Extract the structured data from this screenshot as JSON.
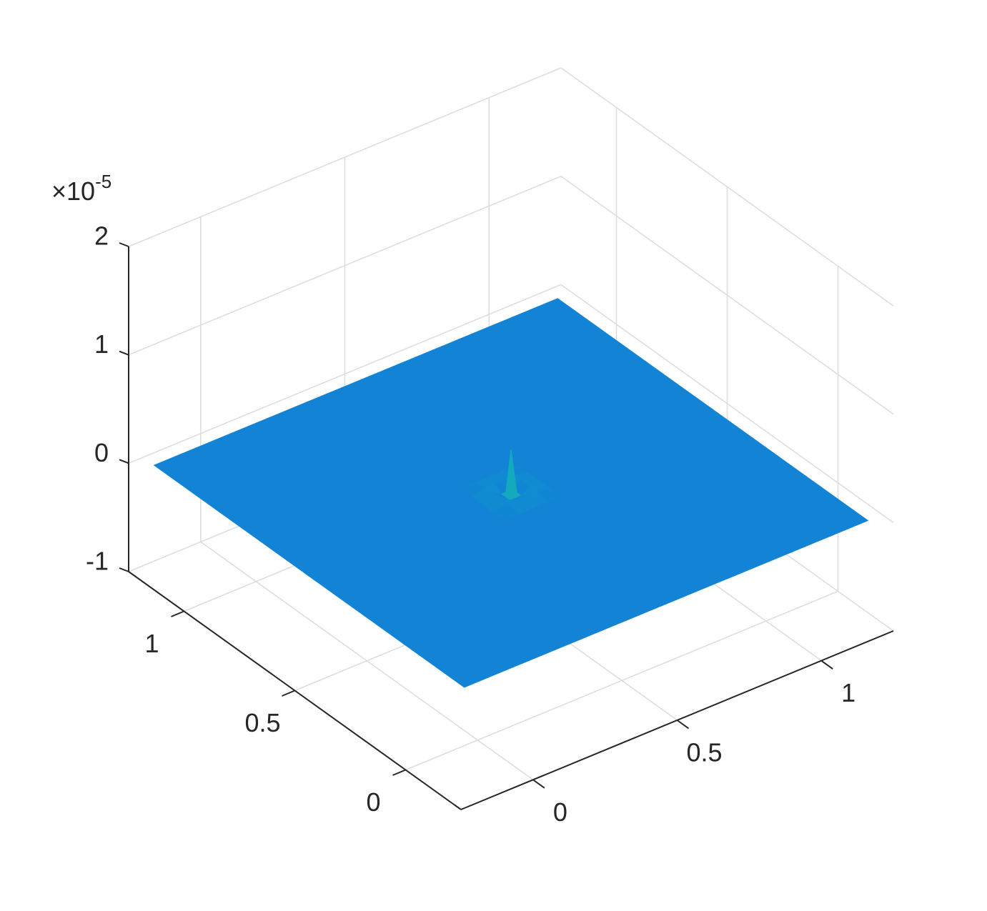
{
  "chart_data": {
    "type": "surface",
    "x": [
      -0.2,
      0,
      0.2,
      0.4,
      0.45,
      0.48,
      0.5,
      0.52,
      0.55,
      0.6,
      0.8,
      1,
      1.2
    ],
    "y": [
      -0.2,
      0,
      0.2,
      0.4,
      0.45,
      0.48,
      0.5,
      0.52,
      0.55,
      0.6,
      0.8,
      1,
      1.2
    ],
    "z": [
      [
        0,
        0,
        0,
        0,
        0,
        0,
        0,
        0,
        0,
        0,
        0,
        0,
        0
      ],
      [
        0,
        0,
        0,
        0,
        0,
        0,
        0,
        0,
        0,
        0,
        0,
        0,
        0
      ],
      [
        0,
        0,
        0,
        0,
        0,
        0,
        0,
        0,
        0,
        0,
        0,
        0,
        0
      ],
      [
        0,
        0,
        0,
        0,
        0,
        0,
        0,
        0,
        0,
        0,
        0,
        0,
        0
      ],
      [
        0,
        0,
        0,
        0,
        0.03,
        0.03,
        0.03,
        0.03,
        0.03,
        0,
        0,
        0,
        0
      ],
      [
        0,
        0,
        0,
        0,
        0.03,
        -0.02,
        -0.02,
        -0.02,
        0.03,
        0,
        0,
        0,
        0
      ],
      [
        0,
        0,
        0,
        0,
        0.03,
        -0.02,
        0.4,
        -0.02,
        0.03,
        0,
        0,
        0,
        0
      ],
      [
        0,
        0,
        0,
        0,
        0.03,
        -0.02,
        -0.02,
        -0.02,
        0.03,
        0,
        0,
        0,
        0
      ],
      [
        0,
        0,
        0,
        0,
        0.03,
        0.03,
        0.03,
        0.03,
        0.03,
        0,
        0,
        0,
        0
      ],
      [
        0,
        0,
        0,
        0,
        0,
        0,
        0,
        0,
        0,
        0,
        0,
        0,
        0
      ],
      [
        0,
        0,
        0,
        0,
        0,
        0,
        0,
        0,
        0,
        0,
        0,
        0,
        0
      ],
      [
        0,
        0,
        0,
        0,
        0,
        0,
        0,
        0,
        0,
        0,
        0,
        0,
        0
      ],
      [
        0,
        0,
        0,
        0,
        0,
        0,
        0,
        0,
        0,
        0,
        0,
        0,
        0
      ]
    ],
    "xlim": [
      -0.25,
      1.25
    ],
    "ylim": [
      -0.25,
      1.25
    ],
    "zlim": [
      -1,
      2
    ],
    "xticks": [
      0,
      0.5,
      1
    ],
    "yticks": [
      0,
      0.5,
      1
    ],
    "zticks": [
      -1,
      0,
      1,
      2
    ],
    "z_multiplier": "×10",
    "z_exponent": "-5",
    "grid": true,
    "clim": [
      -0.14,
      0.4
    ],
    "colormap": [
      "#352a87",
      "#0f5cdd",
      "#1481d6",
      "#06a4ca",
      "#2eb7a4",
      "#87bf77",
      "#d1bb59",
      "#fec832",
      "#f9fb0e"
    ]
  }
}
